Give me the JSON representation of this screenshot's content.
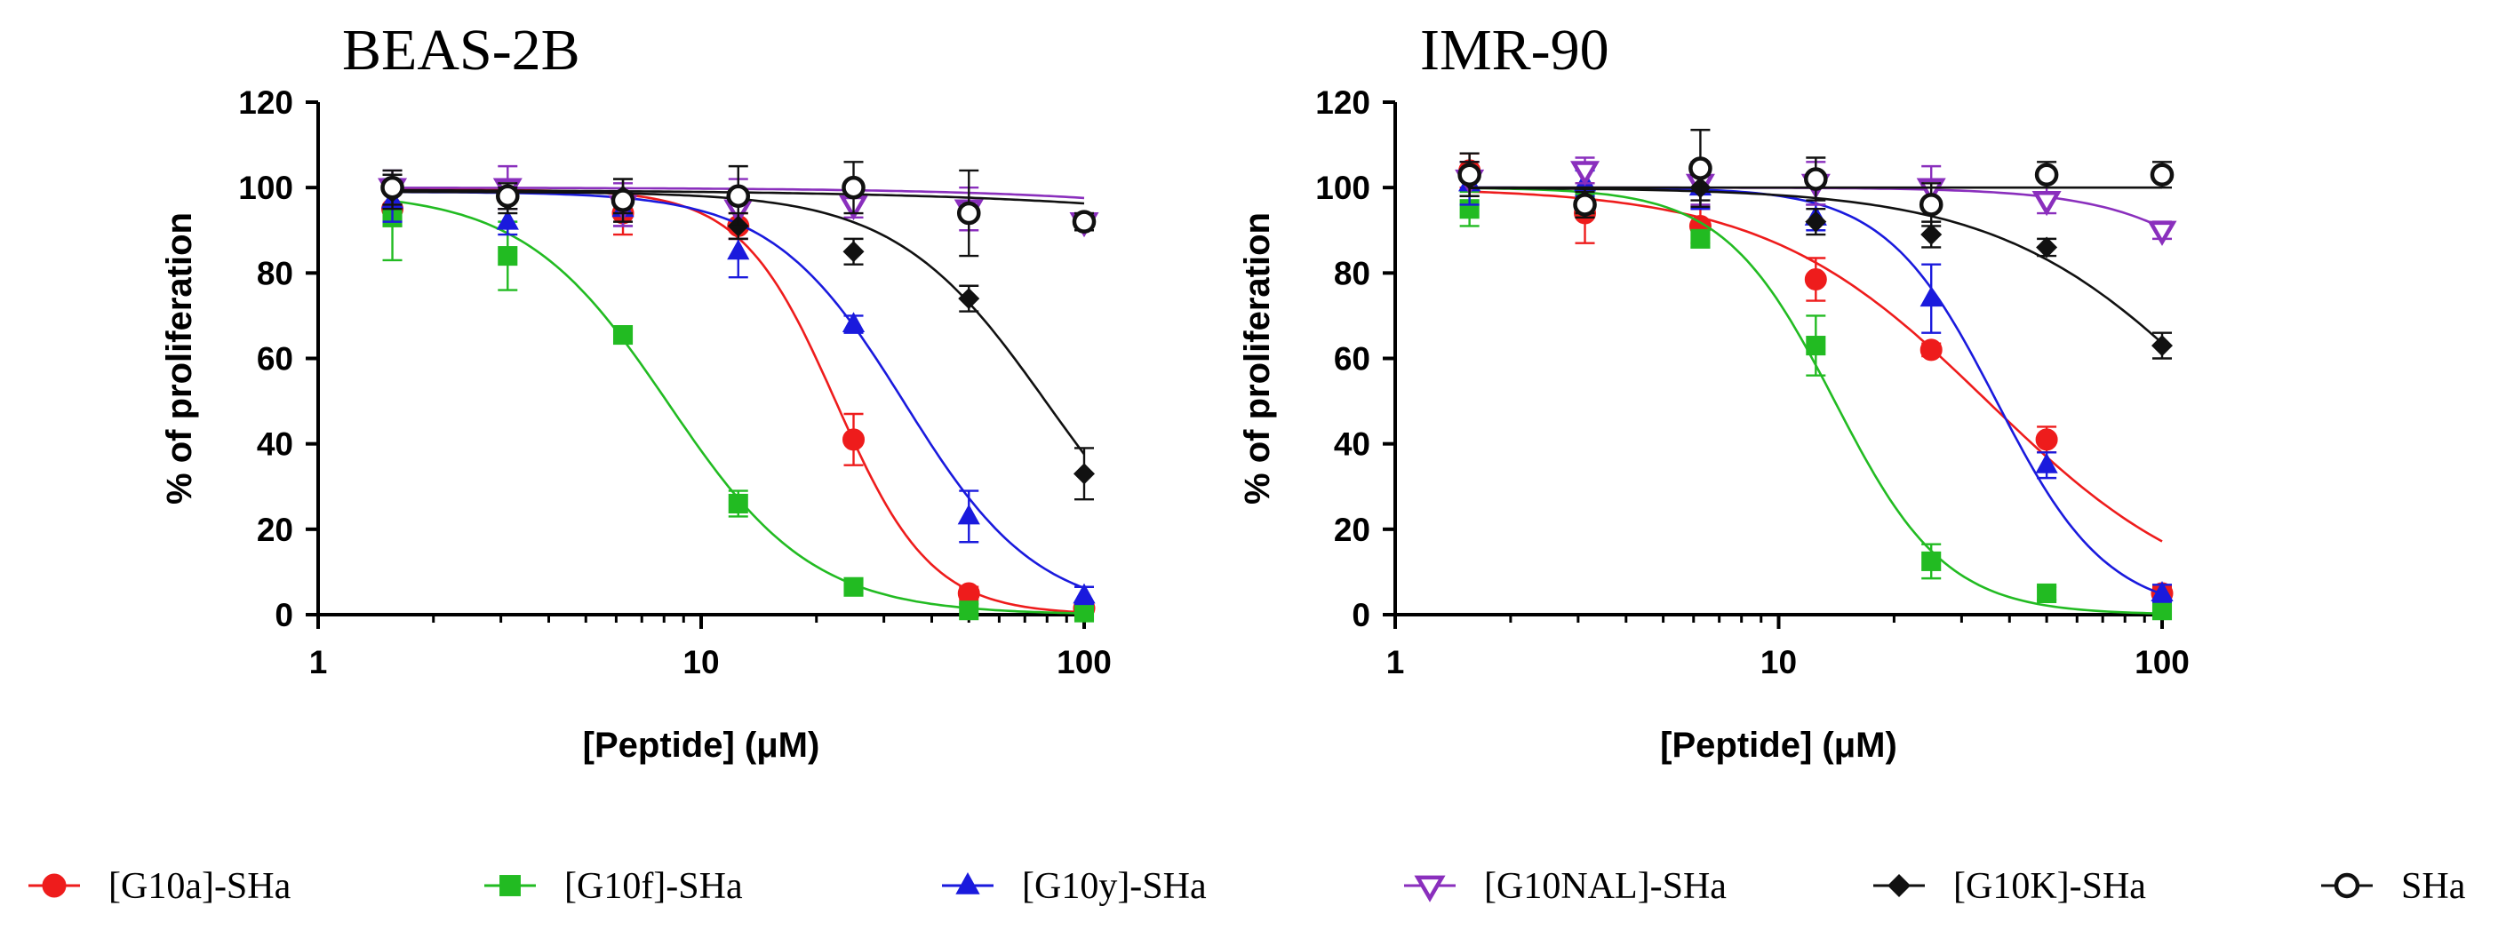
{
  "chart_data": [
    {
      "type": "scatter",
      "title": "BEAS-2B",
      "xlabel": "[Peptide] (μM)",
      "ylabel": "% of proliferation",
      "xscale": "log",
      "xlim": [
        1,
        100
      ],
      "ylim": [
        0,
        120
      ],
      "xticks": [
        1,
        10,
        100
      ],
      "xtick_labels": [
        "1",
        "10",
        "100"
      ],
      "yticks": [
        0,
        20,
        40,
        60,
        80,
        100,
        120
      ],
      "ytick_labels": [
        "0",
        "20",
        "40",
        "60",
        "80",
        "100",
        "120"
      ],
      "x": [
        1.5625,
        3.125,
        6.25,
        12.5,
        25,
        50,
        100
      ],
      "series": [
        {
          "name": "[G10a]-SHa",
          "color": "#ee1c1c",
          "marker": "circle-filled",
          "values": [
            95,
            98,
            94,
            91,
            41,
            5,
            1.5
          ],
          "errors": [
            4,
            3,
            5,
            3,
            6,
            1.5,
            1.5
          ],
          "fit": {
            "top": 99.5,
            "bottom": 0,
            "ic50": 22.5,
            "hill": 3.5
          }
        },
        {
          "name": "[G10f]-SHa",
          "color": "#22bb22",
          "marker": "square-filled",
          "values": [
            93,
            84,
            65.5,
            26,
            6.5,
            1,
            0.5
          ],
          "errors": [
            10,
            8,
            1.5,
            3,
            1.5,
            1.5,
            1
          ],
          "fit": {
            "top": 99,
            "bottom": 0,
            "ic50": 8.2,
            "hill": 2.3
          }
        },
        {
          "name": "[G10y]-SHa",
          "color": "#1a1add",
          "marker": "triangle-up-filled",
          "values": [
            97,
            92,
            95,
            85,
            68,
            23,
            4.5
          ],
          "errors": [
            5,
            3,
            4,
            6,
            2,
            6,
            2
          ],
          "fit": {
            "top": 99,
            "bottom": 0,
            "ic50": 34,
            "hill": 2.5
          }
        },
        {
          "name": "[G10NAL]-SHa",
          "color": "#8a2fbd",
          "marker": "triangle-down-open",
          "values": [
            100,
            100,
            96,
            95,
            96,
            95,
            92
          ],
          "errors": [
            4,
            5,
            5,
            7,
            3,
            5,
            2
          ],
          "fit": {
            "top": 100,
            "bottom": 0,
            "ic50": 4000,
            "hill": 1.0
          }
        },
        {
          "name": "[G10K]-SHa",
          "color": "#111111",
          "marker": "diamond-filled",
          "values": [
            99,
            97,
            98,
            91,
            85,
            74,
            33
          ],
          "errors": [
            4,
            3,
            4,
            3,
            3,
            3,
            6
          ],
          "fit": {
            "top": 99,
            "bottom": 0,
            "ic50": 80,
            "hill": 2.2
          }
        },
        {
          "name": "SHa",
          "color": "#111111",
          "marker": "circle-open",
          "values": [
            100,
            98,
            97,
            98,
            100,
            94,
            92
          ],
          "errors": [
            4,
            3,
            5,
            7,
            6,
            10,
            2
          ],
          "fit": {
            "top": 99.5,
            "bottom": 0,
            "ic50": 7000,
            "hill": 0.8
          }
        }
      ]
    },
    {
      "type": "scatter",
      "title": "IMR-90",
      "xlabel": "[Peptide] (μM)",
      "ylabel": "% of proliferation",
      "xscale": "log",
      "xlim": [
        1,
        100
      ],
      "ylim": [
        0,
        120
      ],
      "xticks": [
        1,
        10,
        100
      ],
      "xtick_labels": [
        "1",
        "10",
        "100"
      ],
      "yticks": [
        0,
        20,
        40,
        60,
        80,
        100,
        120
      ],
      "ytick_labels": [
        "0",
        "20",
        "40",
        "60",
        "80",
        "100",
        "120"
      ],
      "x": [
        1.5625,
        3.125,
        6.25,
        12.5,
        25,
        50,
        100
      ],
      "series": [
        {
          "name": "[G10a]-SHa",
          "color": "#ee1c1c",
          "marker": "circle-filled",
          "values": [
            104,
            94,
            91,
            78.5,
            62,
            41,
            5
          ],
          "errors": [
            4,
            7,
            4,
            5,
            1.5,
            3,
            1.5
          ],
          "fit": {
            "top": 100,
            "bottom": 0,
            "ic50": 35,
            "hill": 1.5
          }
        },
        {
          "name": "[G10f]-SHa",
          "color": "#22bb22",
          "marker": "square-filled",
          "values": [
            95,
            97,
            88,
            63,
            12.5,
            5,
            1
          ],
          "errors": [
            4,
            3,
            2,
            7,
            4,
            1.5,
            1
          ],
          "fit": {
            "top": 100,
            "bottom": 0,
            "ic50": 14,
            "hill": 3.0
          }
        },
        {
          "name": "[G10y]-SHa",
          "color": "#1a1add",
          "marker": "triangle-up-filled",
          "values": [
            101,
            101,
            100,
            93,
            74,
            35,
            5
          ],
          "errors": [
            5,
            3,
            5,
            3,
            8,
            3,
            2
          ],
          "fit": {
            "top": 100,
            "bottom": 0,
            "ic50": 37,
            "hill": 3.0
          }
        },
        {
          "name": "[G10NAL]-SHa",
          "color": "#8a2fbd",
          "marker": "triangle-down-open",
          "values": [
            102,
            104,
            101,
            101,
            100,
            97,
            90
          ],
          "errors": [
            4,
            3,
            5,
            5,
            5,
            3,
            2
          ],
          "fit": {
            "top": 100,
            "bottom": 0,
            "ic50": 280,
            "hill": 2.2
          }
        },
        {
          "name": "[G10K]-SHa",
          "color": "#111111",
          "marker": "diamond-filled",
          "values": [
            102,
            97,
            100,
            92,
            89,
            86,
            63
          ],
          "errors": [
            4,
            3,
            3,
            3,
            3,
            2,
            3
          ],
          "fit": {
            "top": 100,
            "bottom": 0,
            "ic50": 145,
            "hill": 1.5
          }
        },
        {
          "name": "SHa",
          "color": "#111111",
          "marker": "circle-open",
          "values": [
            103,
            96,
            104.5,
            102,
            96,
            103,
            103
          ],
          "errors": [
            5,
            3,
            9,
            5,
            5,
            3,
            3
          ],
          "fit": {
            "top": 100,
            "bottom": 0,
            "ic50": null,
            "hill": 1.0
          }
        }
      ]
    }
  ],
  "legend": {
    "placement": "bottom",
    "items": [
      {
        "label": "[G10a]-SHa",
        "color": "#ee1c1c",
        "marker": "circle-filled"
      },
      {
        "label": "[G10f]-SHa",
        "color": "#22bb22",
        "marker": "square-filled"
      },
      {
        "label": "[G10y]-SHa",
        "color": "#1a1add",
        "marker": "triangle-up-filled"
      },
      {
        "label": "[G10NAL]-SHa",
        "color": "#8a2fbd",
        "marker": "triangle-down-open"
      },
      {
        "label": "[G10K]-SHa",
        "color": "#111111",
        "marker": "diamond-filled"
      },
      {
        "label": "SHa",
        "color": "#111111",
        "marker": "circle-open"
      }
    ]
  }
}
